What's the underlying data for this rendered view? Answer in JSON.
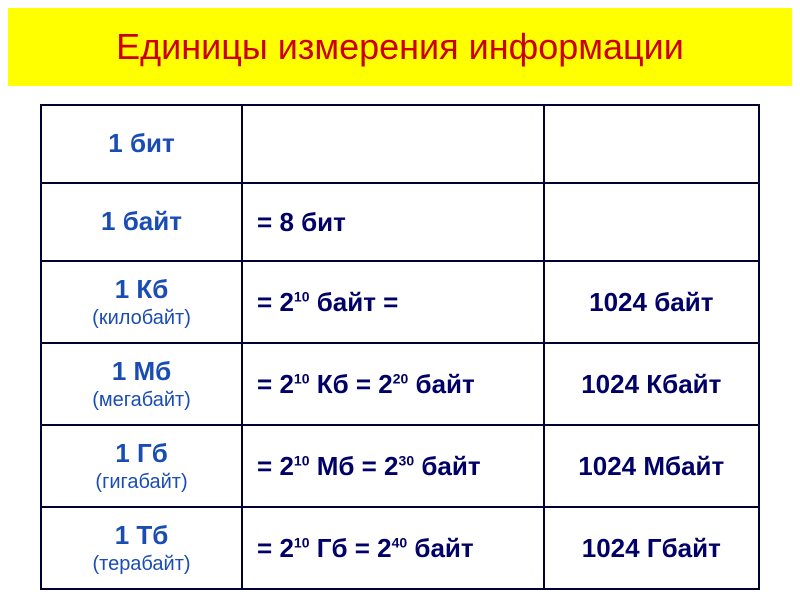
{
  "title": "Единицы измерения информации",
  "title_color": "#cc0000",
  "title_bg": "#ffff00",
  "border_color": "#000033",
  "unit_color": "#1a4db3",
  "text_color": "#000066",
  "background_color": "#ffffff",
  "rows": [
    {
      "unit": "1 бит",
      "sub": "",
      "formula_html": "",
      "result": ""
    },
    {
      "unit": "1 байт",
      "sub": "",
      "formula_html": "= 8 бит",
      "result": ""
    },
    {
      "unit": "1 Кб",
      "sub": "(килобайт)",
      "formula_html": "= 2<sup>10</sup> байт =",
      "result": "1024 байт"
    },
    {
      "unit": "1 Мб",
      "sub": "(мегабайт)",
      "formula_html": "= 2<sup>10</sup> Кб = 2<sup>20</sup> байт",
      "result": "1024 Кбайт"
    },
    {
      "unit": "1 Гб",
      "sub": "(гигабайт)",
      "formula_html": "= 2<sup>10</sup> Мб = 2<sup>30</sup> байт",
      "result": "1024 Мбайт"
    },
    {
      "unit": "1 Тб",
      "sub": "(терабайт)",
      "formula_html": "= 2<sup>10</sup> Гб = 2<sup>40</sup> байт",
      "result": "1024 Гбайт"
    }
  ]
}
